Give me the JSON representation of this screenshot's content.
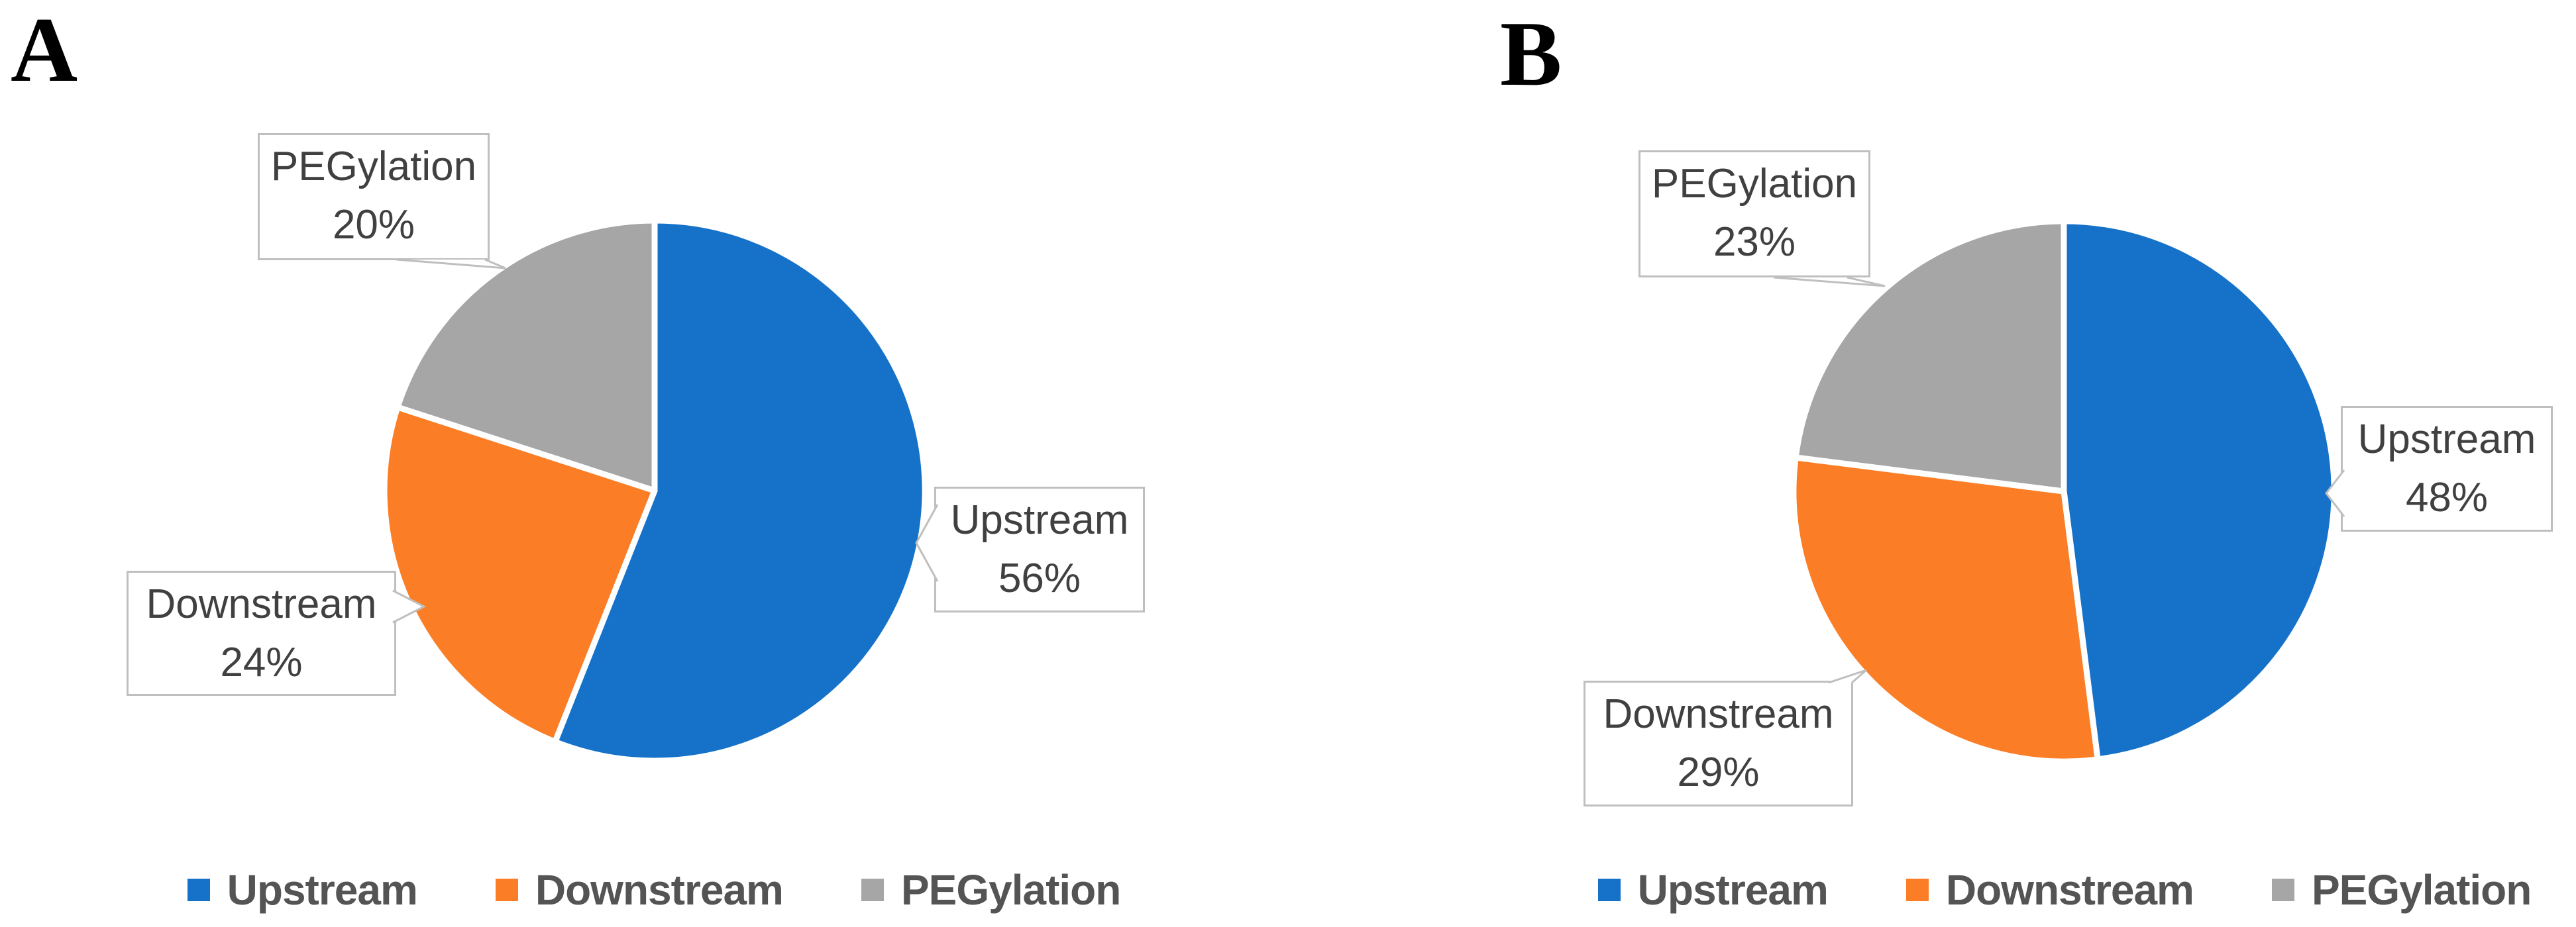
{
  "colors": {
    "upstream": "#1672c8",
    "downstream": "#fb7d25",
    "pegylation": "#a6a6a6",
    "box_border": "#bfbfbf",
    "label_text": "#404040",
    "legend_text": "#545454",
    "background": "#ffffff",
    "panel_letter": "#000000"
  },
  "chart_data": [
    {
      "panel": "A",
      "type": "pie",
      "categories": [
        "Upstream",
        "Downstream",
        "PEGylation"
      ],
      "values": [
        56,
        24,
        20
      ],
      "unit": "percent",
      "colors": [
        "#1672c8",
        "#fb7d25",
        "#a6a6a6"
      ],
      "start_angle_deg": 0,
      "direction": "clockwise",
      "slice_border_color": "#ffffff",
      "legend_position": "bottom",
      "legend_entries": [
        "Upstream",
        "Downstream",
        "PEGylation"
      ],
      "data_labels": [
        "Upstream 56%",
        "Downstream 24%",
        "PEGylation 20%"
      ]
    },
    {
      "panel": "B",
      "type": "pie",
      "categories": [
        "Upstream",
        "Downstream",
        "PEGylation"
      ],
      "values": [
        48,
        29,
        23
      ],
      "unit": "percent",
      "colors": [
        "#1672c8",
        "#fb7d25",
        "#a6a6a6"
      ],
      "start_angle_deg": 0,
      "direction": "clockwise",
      "slice_border_color": "#ffffff",
      "legend_position": "bottom",
      "legend_entries": [
        "Upstream",
        "Downstream",
        "PEGylation"
      ],
      "data_labels": [
        "Upstream 48%",
        "Downstream 29%",
        "PEGylation 23%"
      ]
    }
  ],
  "panels": [
    {
      "letter": "A",
      "callouts": {
        "pegylation": {
          "line1": "PEGylation",
          "line2": "20%"
        },
        "upstream": {
          "line1": "Upstream",
          "line2": "56%"
        },
        "downstream": {
          "line1": "Downstream",
          "line2": "24%"
        }
      },
      "legend": [
        {
          "label": "Upstream"
        },
        {
          "label": "Downstream"
        },
        {
          "label": "PEGylation"
        }
      ]
    },
    {
      "letter": "B",
      "callouts": {
        "pegylation": {
          "line1": "PEGylation",
          "line2": "23%"
        },
        "upstream": {
          "line1": "Upstream",
          "line2": "48%"
        },
        "downstream": {
          "line1": "Downstream",
          "line2": "29%"
        }
      },
      "legend": [
        {
          "label": "Upstream"
        },
        {
          "label": "Downstream"
        },
        {
          "label": "PEGylation"
        }
      ]
    }
  ]
}
